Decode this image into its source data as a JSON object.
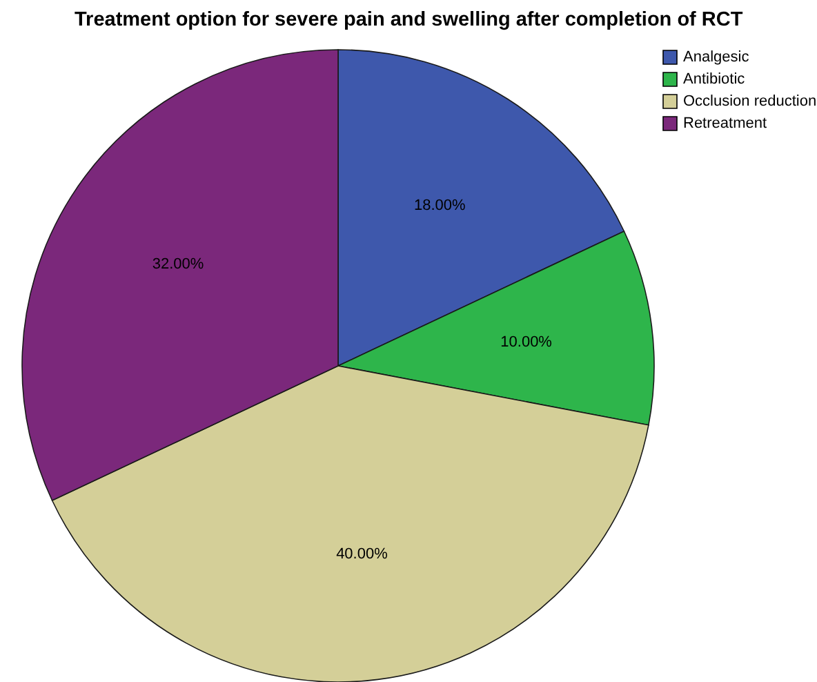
{
  "chart_data": {
    "type": "pie",
    "title": "Treatment option for severe pain and swelling after completion of RCT",
    "categories": [
      "Analgesic",
      "Antibiotic",
      "Occlusion reduction",
      "Retreatment"
    ],
    "values": [
      18,
      10,
      40,
      32
    ],
    "colors": [
      "#3e58ac",
      "#2eb54b",
      "#d4cf98",
      "#7b287b"
    ],
    "value_labels": [
      "18.00%",
      "10.00%",
      "40.00%",
      "32.00%"
    ],
    "legend": "top right"
  }
}
